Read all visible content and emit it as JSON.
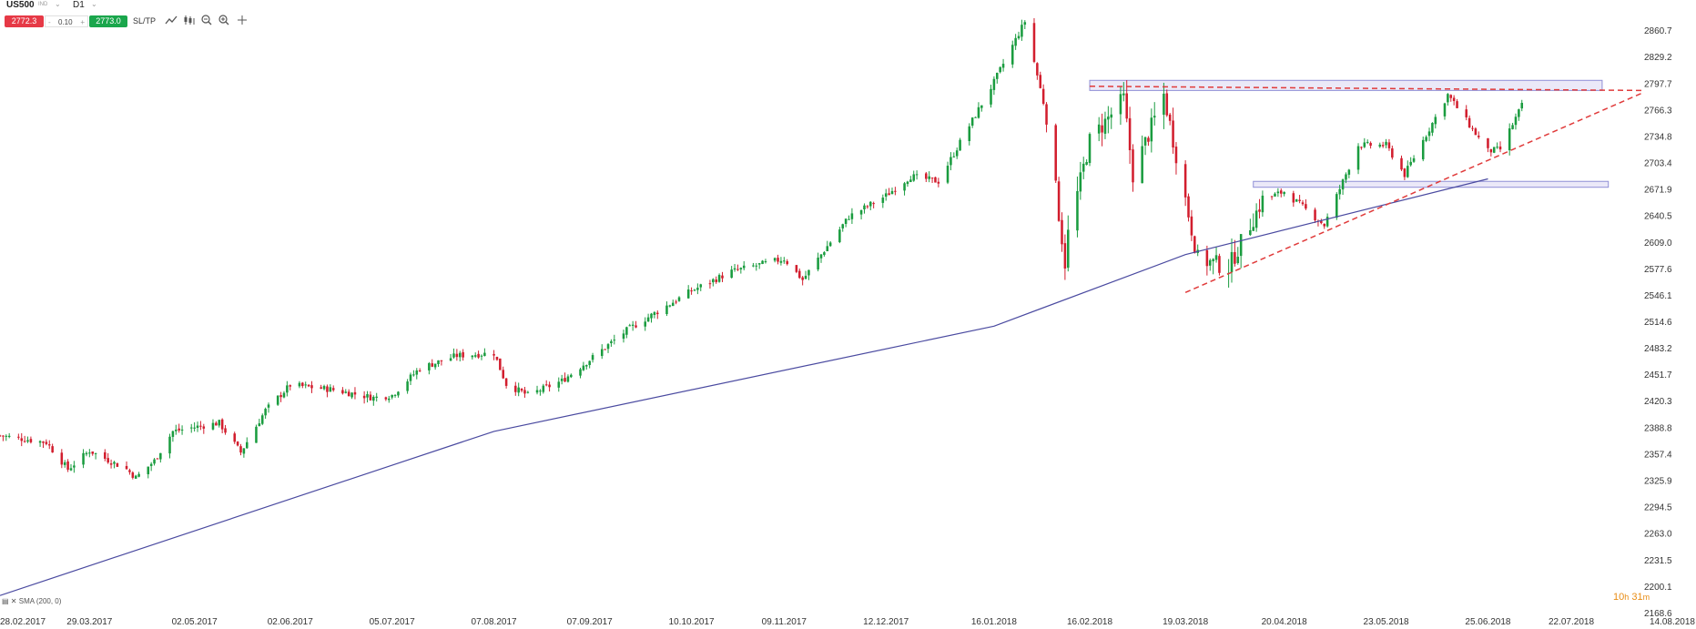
{
  "toolbar": {
    "symbol": "US500",
    "symbol_sub": "IND",
    "timeframe": "D1",
    "sell_price": "2772.3",
    "volume": "0.10",
    "minus": "-",
    "plus": "+",
    "buy_price": "2773.0",
    "sltp_label": "SL/TP",
    "icons": [
      "line-chart-icon",
      "candles-icon",
      "zoom-out-icon",
      "zoom-in-icon",
      "crosshair-icon"
    ]
  },
  "indicator_label": "SMA (200, 0)",
  "countdown": {
    "hours": "10",
    "h": "h",
    "minutes": "31",
    "m": "m"
  },
  "colors": {
    "bull": "#1a9c3f",
    "bear": "#d21e2e",
    "sma": "#4a4aa0",
    "trendline": "#e03a3a",
    "zone_fill": "#e4e2f6",
    "zone_stroke": "#8f8fd6"
  },
  "chart_data": {
    "type": "candlestick",
    "instrument": "US500",
    "timeframe": "D1",
    "y_ticks": [
      2860.7,
      2829.2,
      2797.7,
      2766.3,
      2734.8,
      2703.4,
      2671.9,
      2640.5,
      2609.0,
      2577.6,
      2546.1,
      2514.6,
      2483.2,
      2451.7,
      2420.3,
      2388.8,
      2357.4,
      2325.9,
      2294.5,
      2263.0,
      2231.5,
      2200.1,
      2168.6
    ],
    "x_ticks": [
      "28.02.2017",
      "29.03.2017",
      "02.05.2017",
      "02.06.2017",
      "05.07.2017",
      "07.08.2017",
      "07.09.2017",
      "10.10.2017",
      "09.11.2017",
      "12.12.2017",
      "16.01.2018",
      "16.02.2018",
      "19.03.2018",
      "20.04.2018",
      "23.05.2018",
      "25.06.2018",
      "22.07.2018",
      "14.08.2018"
    ],
    "ylim": [
      2168.6,
      2875
    ],
    "close_path": [
      [
        "28.02.2017",
        2380
      ],
      [
        "15.03.2017",
        2372
      ],
      [
        "22.03.2017",
        2340
      ],
      [
        "29.03.2017",
        2362
      ],
      [
        "10.04.2017",
        2340
      ],
      [
        "13.04.2017",
        2330
      ],
      [
        "19.04.2017",
        2350
      ],
      [
        "25.04.2017",
        2385
      ],
      [
        "02.05.2017",
        2390
      ],
      [
        "10.05.2017",
        2395
      ],
      [
        "17.05.2017",
        2360
      ],
      [
        "25.05.2017",
        2410
      ],
      [
        "02.06.2017",
        2440
      ],
      [
        "15.06.2017",
        2435
      ],
      [
        "29.06.2017",
        2425
      ],
      [
        "05.07.2017",
        2428
      ],
      [
        "14.07.2017",
        2460
      ],
      [
        "26.07.2017",
        2475
      ],
      [
        "07.08.2017",
        2478
      ],
      [
        "11.08.2017",
        2441
      ],
      [
        "18.08.2017",
        2428
      ],
      [
        "29.08.2017",
        2445
      ],
      [
        "07.09.2017",
        2470
      ],
      [
        "19.09.2017",
        2505
      ],
      [
        "10.10.2017",
        2552
      ],
      [
        "23.10.2017",
        2575
      ],
      [
        "09.11.2017",
        2590
      ],
      [
        "15.11.2017",
        2565
      ],
      [
        "30.11.2017",
        2640
      ],
      [
        "12.12.2017",
        2665
      ],
      [
        "20.12.2017",
        2688
      ],
      [
        "29.12.2017",
        2682
      ],
      [
        "08.01.2018",
        2748
      ],
      [
        "16.01.2018",
        2800
      ],
      [
        "26.01.2018",
        2872
      ],
      [
        "02.02.2018",
        2760
      ],
      [
        "08.02.2018",
        2585
      ],
      [
        "09.02.2018",
        2620
      ],
      [
        "16.02.2018",
        2730
      ],
      [
        "27.02.2018",
        2780
      ],
      [
        "02.03.2018",
        2690
      ],
      [
        "12.03.2018",
        2785
      ],
      [
        "23.03.2018",
        2590
      ],
      [
        "02.04.2018",
        2580
      ],
      [
        "13.04.2018",
        2660
      ],
      [
        "20.04.2018",
        2670
      ],
      [
        "03.05.2018",
        2630
      ],
      [
        "14.05.2018",
        2725
      ],
      [
        "23.05.2018",
        2725
      ],
      [
        "29.05.2018",
        2690
      ],
      [
        "12.06.2018",
        2785
      ],
      [
        "25.06.2018",
        2718
      ],
      [
        "29.06.2018",
        2720
      ],
      [
        "06.07.2018",
        2772
      ]
    ],
    "lines": [
      {
        "name": "SMA (200, 0)",
        "kind": "sma",
        "points": [
          [
            "28.02.2017",
            2190
          ],
          [
            "07.08.2017",
            2385
          ],
          [
            "16.01.2018",
            2510
          ],
          [
            "19.03.2018",
            2595
          ],
          [
            "25.06.2018",
            2685
          ]
        ]
      },
      {
        "kind": "support-trendline",
        "points": [
          [
            "19.03.2018",
            2550
          ],
          [
            "14.08.2018",
            2787
          ]
        ]
      },
      {
        "kind": "resistance-line",
        "points": [
          [
            "16.02.2018",
            2795
          ],
          [
            "14.08.2018",
            2790
          ]
        ]
      }
    ],
    "zones": [
      {
        "kind": "resistance-zone",
        "x": [
          "16.02.2018",
          "01.08.2018"
        ],
        "y": [
          2790,
          2802
        ]
      },
      {
        "kind": "support-zone",
        "x": [
          "10.04.2018",
          "03.08.2018"
        ],
        "y": [
          2675,
          2682
        ]
      }
    ],
    "xlabel": "",
    "ylabel": ""
  }
}
